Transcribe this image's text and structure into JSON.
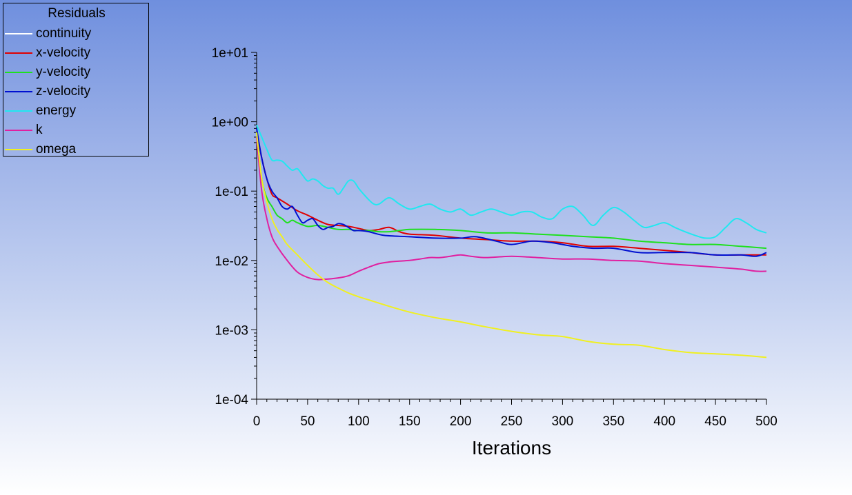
{
  "chart_data": {
    "type": "line",
    "title": "",
    "xlabel": "Iterations",
    "ylabel": "",
    "y_scale": "log",
    "xlim": [
      0,
      500
    ],
    "ylim": [
      0.0001,
      10
    ],
    "x_ticks": [
      "0",
      "50",
      "100",
      "150",
      "200",
      "250",
      "300",
      "350",
      "400",
      "450",
      "500"
    ],
    "y_ticks": [
      "1e+01",
      "1e+00",
      "1e-01",
      "1e-02",
      "1e-03",
      "1e-04"
    ],
    "grid": false,
    "legend": {
      "title": "Residuals",
      "position": "top-left"
    },
    "series": [
      {
        "name": "continuity",
        "color": "#ffffff",
        "x": [
          0
        ],
        "y": [
          1.0
        ]
      },
      {
        "name": "x-velocity",
        "color": "#e00000",
        "x": [
          0,
          5,
          10,
          15,
          20,
          30,
          40,
          50,
          60,
          70,
          80,
          90,
          100,
          110,
          120,
          130,
          140,
          150,
          175,
          200,
          225,
          250,
          275,
          300,
          325,
          350,
          375,
          400,
          425,
          450,
          475,
          500
        ],
        "y": [
          0.7,
          0.3,
          0.15,
          0.09,
          0.08,
          0.065,
          0.052,
          0.045,
          0.038,
          0.033,
          0.032,
          0.031,
          0.029,
          0.027,
          0.028,
          0.03,
          0.026,
          0.024,
          0.023,
          0.021,
          0.02,
          0.019,
          0.019,
          0.018,
          0.016,
          0.016,
          0.015,
          0.014,
          0.013,
          0.012,
          0.012,
          0.012
        ]
      },
      {
        "name": "y-velocity",
        "color": "#1ee01e",
        "x": [
          0,
          5,
          10,
          15,
          20,
          25,
          30,
          35,
          40,
          50,
          60,
          70,
          80,
          90,
          100,
          110,
          120,
          130,
          140,
          150,
          175,
          200,
          225,
          250,
          275,
          300,
          325,
          350,
          375,
          400,
          425,
          450,
          475,
          500
        ],
        "y": [
          0.7,
          0.15,
          0.08,
          0.06,
          0.045,
          0.04,
          0.035,
          0.038,
          0.035,
          0.031,
          0.032,
          0.03,
          0.028,
          0.028,
          0.027,
          0.027,
          0.026,
          0.026,
          0.027,
          0.028,
          0.028,
          0.027,
          0.025,
          0.025,
          0.024,
          0.023,
          0.022,
          0.021,
          0.019,
          0.018,
          0.017,
          0.017,
          0.016,
          0.015
        ]
      },
      {
        "name": "z-velocity",
        "color": "#0010d0",
        "x": [
          0,
          5,
          10,
          15,
          20,
          25,
          30,
          35,
          40,
          45,
          50,
          55,
          60,
          65,
          70,
          75,
          80,
          85,
          90,
          95,
          100,
          110,
          125,
          150,
          175,
          200,
          215,
          235,
          250,
          270,
          290,
          310,
          330,
          350,
          375,
          400,
          425,
          450,
          475,
          490,
          500
        ],
        "y": [
          0.8,
          0.3,
          0.15,
          0.1,
          0.08,
          0.06,
          0.055,
          0.06,
          0.045,
          0.035,
          0.038,
          0.04,
          0.032,
          0.028,
          0.03,
          0.031,
          0.034,
          0.033,
          0.03,
          0.027,
          0.027,
          0.026,
          0.023,
          0.022,
          0.021,
          0.021,
          0.022,
          0.019,
          0.017,
          0.019,
          0.018,
          0.016,
          0.015,
          0.015,
          0.013,
          0.013,
          0.013,
          0.012,
          0.012,
          0.0115,
          0.013
        ]
      },
      {
        "name": "energy",
        "color": "#20e8f0",
        "x": [
          0,
          5,
          10,
          15,
          20,
          25,
          30,
          35,
          40,
          45,
          50,
          55,
          60,
          65,
          70,
          75,
          80,
          85,
          90,
          95,
          100,
          105,
          110,
          115,
          120,
          130,
          140,
          150,
          160,
          170,
          180,
          190,
          200,
          210,
          220,
          230,
          240,
          250,
          260,
          270,
          280,
          290,
          300,
          310,
          320,
          330,
          340,
          350,
          360,
          370,
          380,
          390,
          400,
          410,
          420,
          430,
          440,
          450,
          460,
          470,
          480,
          490,
          500
        ],
        "y": [
          0.9,
          0.6,
          0.4,
          0.28,
          0.28,
          0.27,
          0.23,
          0.2,
          0.21,
          0.17,
          0.14,
          0.15,
          0.14,
          0.12,
          0.11,
          0.11,
          0.09,
          0.11,
          0.14,
          0.14,
          0.11,
          0.09,
          0.075,
          0.065,
          0.065,
          0.08,
          0.065,
          0.055,
          0.06,
          0.065,
          0.055,
          0.05,
          0.055,
          0.045,
          0.05,
          0.055,
          0.05,
          0.045,
          0.05,
          0.05,
          0.042,
          0.04,
          0.055,
          0.06,
          0.045,
          0.032,
          0.045,
          0.058,
          0.05,
          0.038,
          0.03,
          0.032,
          0.035,
          0.03,
          0.026,
          0.023,
          0.021,
          0.022,
          0.03,
          0.04,
          0.035,
          0.028,
          0.025
        ]
      },
      {
        "name": "k",
        "color": "#e020a0",
        "x": [
          0,
          5,
          10,
          15,
          20,
          30,
          40,
          50,
          60,
          70,
          80,
          90,
          100,
          110,
          120,
          130,
          140,
          150,
          160,
          170,
          180,
          190,
          200,
          210,
          225,
          250,
          275,
          300,
          325,
          350,
          375,
          400,
          425,
          450,
          475,
          490,
          500
        ],
        "y": [
          0.6,
          0.1,
          0.04,
          0.022,
          0.016,
          0.01,
          0.0068,
          0.0057,
          0.0053,
          0.0054,
          0.0056,
          0.006,
          0.007,
          0.008,
          0.009,
          0.0095,
          0.0098,
          0.01,
          0.0105,
          0.011,
          0.011,
          0.0115,
          0.012,
          0.0115,
          0.011,
          0.0115,
          0.011,
          0.0105,
          0.0105,
          0.01,
          0.0098,
          0.009,
          0.0085,
          0.008,
          0.0075,
          0.007,
          0.007
        ]
      },
      {
        "name": "omega",
        "color": "#f0f020",
        "x": [
          0,
          5,
          10,
          15,
          20,
          25,
          30,
          40,
          50,
          60,
          70,
          80,
          90,
          100,
          110,
          125,
          150,
          175,
          200,
          225,
          250,
          275,
          300,
          325,
          350,
          375,
          400,
          425,
          450,
          475,
          500
        ],
        "y": [
          0.7,
          0.15,
          0.07,
          0.04,
          0.028,
          0.022,
          0.017,
          0.012,
          0.0085,
          0.0062,
          0.0048,
          0.004,
          0.0034,
          0.003,
          0.0027,
          0.0023,
          0.0018,
          0.0015,
          0.0013,
          0.0011,
          0.00095,
          0.00085,
          0.0008,
          0.00068,
          0.00062,
          0.0006,
          0.00052,
          0.00047,
          0.00045,
          0.00043,
          0.0004
        ]
      }
    ]
  }
}
